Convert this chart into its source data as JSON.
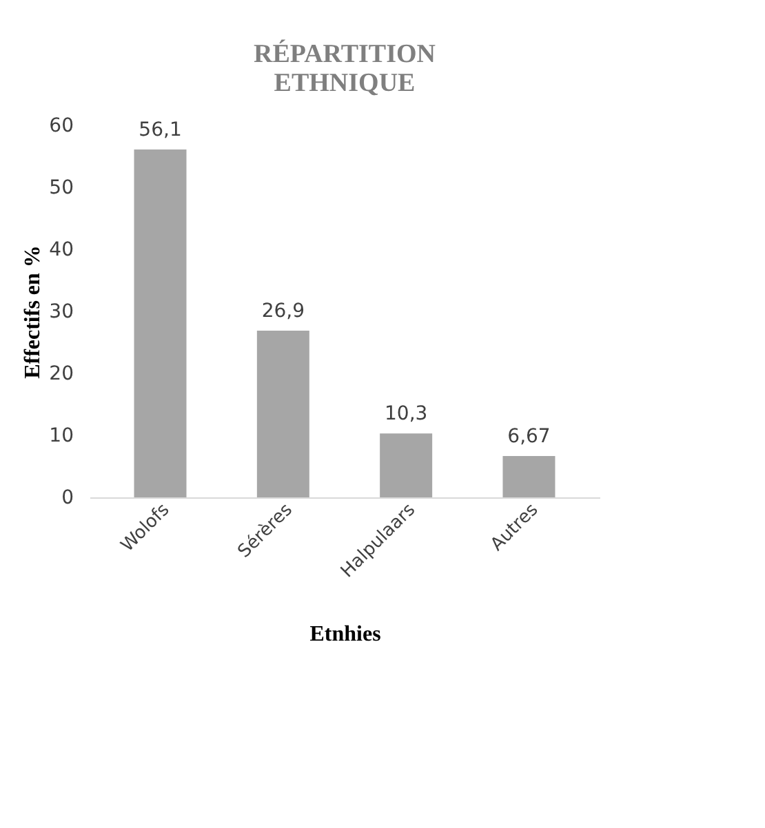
{
  "chart_data": {
    "type": "bar",
    "title": "RÉPARTITION ETHNIQUE",
    "xlabel": "Etnhies",
    "ylabel": "Effectifs en %",
    "categories": [
      "Wolofs",
      "Sérères",
      "Halpulaars",
      "Autres"
    ],
    "values": [
      56.1,
      26.9,
      10.3,
      6.67
    ],
    "color": "#a6a6a6",
    "ylim": [
      0,
      60
    ],
    "yticks": [
      0,
      10,
      20,
      30,
      40,
      50,
      60
    ],
    "grid": false,
    "value_labels": [
      "56,1",
      "26,9",
      "10,3",
      "6,67"
    ]
  }
}
